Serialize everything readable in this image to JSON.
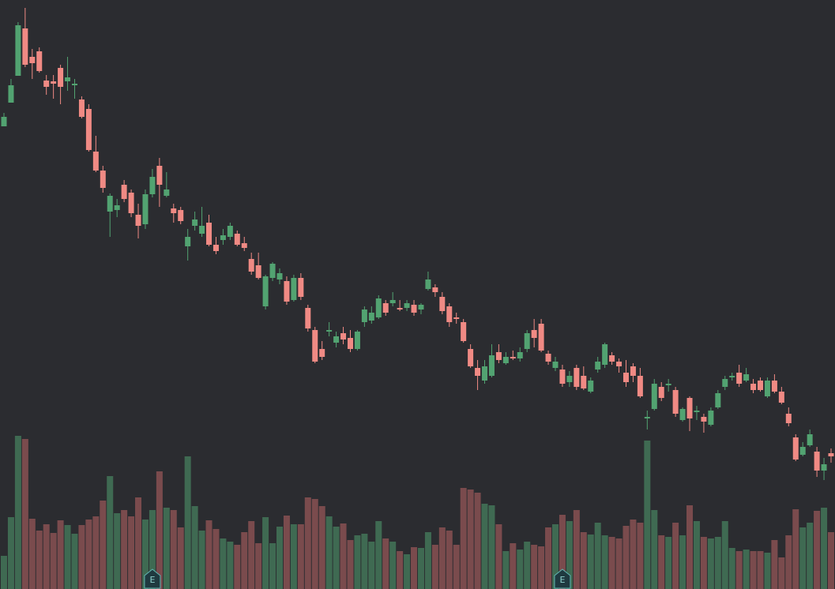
{
  "chart_data": {
    "type": "candlestick",
    "open": [
      640,
      670,
      704,
      764,
      728,
      735,
      698,
      697,
      714,
      697,
      692,
      674,
      662,
      608,
      584,
      532,
      534,
      566,
      556,
      528,
      516,
      554,
      590,
      552,
      536,
      534,
      488,
      514,
      504,
      518,
      490,
      496,
      500,
      504,
      492,
      472,
      464,
      412,
      448,
      446,
      444,
      420,
      448,
      410,
      382,
      358,
      380,
      366,
      378,
      372,
      358,
      392,
      394,
      398,
      416,
      416,
      410,
      410,
      414,
      408,
      434,
      436,
      424,
      412,
      398,
      392,
      358,
      334,
      318,
      324,
      354,
      340,
      348,
      346,
      358,
      382,
      390,
      352,
      334,
      332,
      316,
      334,
      324,
      304,
      332,
      338,
      350,
      342,
      328,
      336,
      324,
      270,
      282,
      310,
      312,
      306,
      268,
      296,
      278,
      272,
      262,
      284,
      310,
      322,
      328,
      318,
      314,
      318,
      298,
      318,
      304,
      276,
      246,
      224,
      236,
      228,
      204,
      226
    ],
    "high": [
      657,
      700,
      772,
      790,
      738,
      740,
      705,
      705,
      718,
      728,
      700,
      678,
      668,
      628,
      590,
      555,
      548,
      572,
      560,
      542,
      560,
      586,
      600,
      582,
      542,
      538,
      510,
      532,
      538,
      528,
      500,
      510,
      518,
      508,
      500,
      480,
      480,
      452,
      468,
      460,
      450,
      452,
      454,
      414,
      386,
      368,
      392,
      380,
      386,
      382,
      382,
      412,
      412,
      426,
      420,
      430,
      420,
      420,
      420,
      416,
      456,
      440,
      430,
      416,
      404,
      396,
      364,
      344,
      344,
      364,
      364,
      354,
      356,
      360,
      382,
      396,
      396,
      356,
      348,
      338,
      330,
      338,
      336,
      322,
      348,
      366,
      354,
      346,
      344,
      340,
      334,
      280,
      320,
      316,
      320,
      310,
      284,
      298,
      286,
      276,
      284,
      306,
      324,
      328,
      338,
      334,
      320,
      322,
      322,
      326,
      310,
      284,
      250,
      240,
      256,
      234,
      220,
      232
    ],
    "low": [
      640,
      670,
      704,
      715,
      700,
      708,
      680,
      675,
      668,
      685,
      675,
      650,
      608,
      582,
      556,
      500,
      525,
      544,
      525,
      498,
      510,
      550,
      538,
      550,
      518,
      516,
      470,
      508,
      500,
      488,
      478,
      490,
      496,
      488,
      482,
      452,
      446,
      408,
      444,
      440,
      414,
      418,
      420,
      380,
      340,
      344,
      374,
      360,
      364,
      354,
      356,
      386,
      390,
      396,
      400,
      412,
      406,
      406,
      400,
      402,
      432,
      424,
      402,
      386,
      390,
      366,
      334,
      306,
      314,
      322,
      340,
      338,
      344,
      342,
      354,
      360,
      354,
      338,
      330,
      310,
      310,
      306,
      306,
      302,
      328,
      334,
      338,
      328,
      310,
      316,
      296,
      256,
      280,
      292,
      304,
      272,
      266,
      254,
      268,
      252,
      260,
      282,
      306,
      318,
      310,
      316,
      302,
      304,
      296,
      302,
      288,
      260,
      216,
      222,
      234,
      196,
      192,
      214
    ],
    "close": [
      652,
      692,
      768,
      718,
      720,
      710,
      690,
      694,
      690,
      702,
      694,
      652,
      610,
      584,
      562,
      552,
      540,
      548,
      530,
      514,
      554,
      576,
      566,
      560,
      530,
      520,
      500,
      522,
      514,
      490,
      482,
      502,
      514,
      490,
      486,
      456,
      448,
      450,
      466,
      454,
      418,
      448,
      424,
      384,
      342,
      348,
      382,
      374,
      370,
      358,
      380,
      408,
      404,
      422,
      404,
      420,
      408,
      416,
      404,
      414,
      446,
      430,
      406,
      392,
      396,
      368,
      336,
      324,
      336,
      350,
      344,
      348,
      346,
      354,
      378,
      372,
      356,
      342,
      342,
      314,
      324,
      310,
      308,
      318,
      342,
      364,
      342,
      336,
      316,
      324,
      298,
      272,
      314,
      296,
      314,
      276,
      282,
      270,
      280,
      266,
      280,
      302,
      320,
      324,
      314,
      326,
      306,
      306,
      318,
      304,
      290,
      264,
      218,
      234,
      250,
      204,
      212,
      222
    ],
    "volume": [
      42,
      91,
      194,
      190,
      89,
      74,
      82,
      71,
      87,
      81,
      70,
      81,
      88,
      92,
      112,
      143,
      96,
      100,
      92,
      116,
      88,
      100,
      149,
      103,
      100,
      78,
      168,
      105,
      74,
      87,
      76,
      64,
      60,
      56,
      72,
      86,
      58,
      91,
      58,
      79,
      93,
      82,
      82,
      116,
      114,
      105,
      92,
      79,
      83,
      62,
      68,
      70,
      60,
      86,
      64,
      60,
      48,
      44,
      53,
      52,
      72,
      56,
      78,
      74,
      56,
      128,
      126,
      122,
      108,
      106,
      82,
      48,
      58,
      50,
      60,
      56,
      54,
      78,
      82,
      94,
      86,
      100,
      72,
      69,
      84,
      68,
      66,
      64,
      80,
      88,
      84,
      188,
      100,
      68,
      66,
      84,
      68,
      106,
      86,
      66,
      64,
      66,
      86,
      52,
      48,
      50,
      48,
      48,
      46,
      62,
      40,
      68,
      101,
      78,
      84,
      99,
      103,
      72
    ],
    "ylim": [
      54,
      800
    ],
    "y2lim": [
      0,
      746
    ],
    "up_color": "#52a371",
    "down_color": "#f08a84",
    "volume_up_color": "#3f6a52",
    "volume_down_color": "#7a4b4d",
    "events": [
      {
        "label": "E",
        "index": 21
      },
      {
        "label": "E",
        "index": 79
      }
    ]
  }
}
